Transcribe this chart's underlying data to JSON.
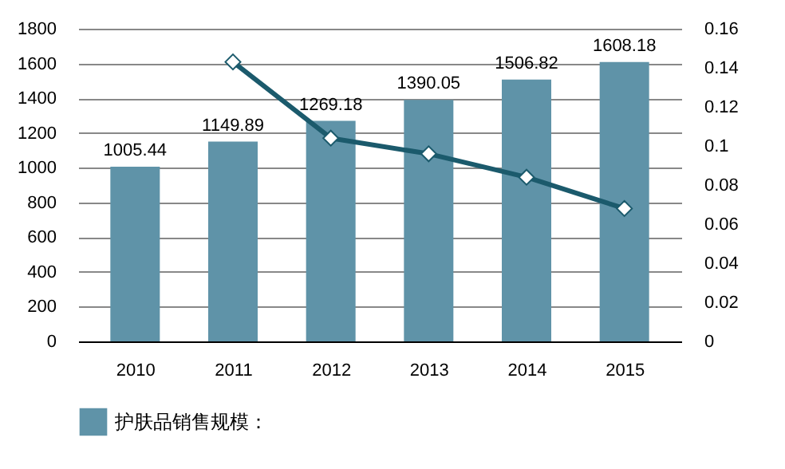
{
  "chart_data": {
    "type": "bar",
    "categories": [
      "2010",
      "2011",
      "2012",
      "2013",
      "2014",
      "2015"
    ],
    "series": [
      {
        "name": "护肤品销售规模：",
        "color": "#5f93a8",
        "values": [
          1005.44,
          1149.89,
          1269.18,
          1390.05,
          1506.82,
          1608.18
        ],
        "value_labels": [
          "1005.44",
          "1149.89",
          "1269.18",
          "1390.05",
          "1506.82",
          "1608.18"
        ]
      },
      {
        "type": "line",
        "axis": "y2",
        "color": "#1b5a6c",
        "marker": "diamond",
        "values": [
          null,
          0.143,
          0.104,
          0.096,
          0.084,
          0.068
        ]
      }
    ],
    "ylim": [
      0,
      1800
    ],
    "yticks": [
      0,
      200,
      400,
      600,
      800,
      1000,
      1200,
      1400,
      1600,
      1800
    ],
    "y2lim": [
      0,
      0.16
    ],
    "y2ticks": [
      0,
      0.02,
      0.04,
      0.06,
      0.08,
      0.1,
      0.12,
      0.14,
      0.16
    ],
    "grid": "y",
    "legend": "bottom"
  }
}
